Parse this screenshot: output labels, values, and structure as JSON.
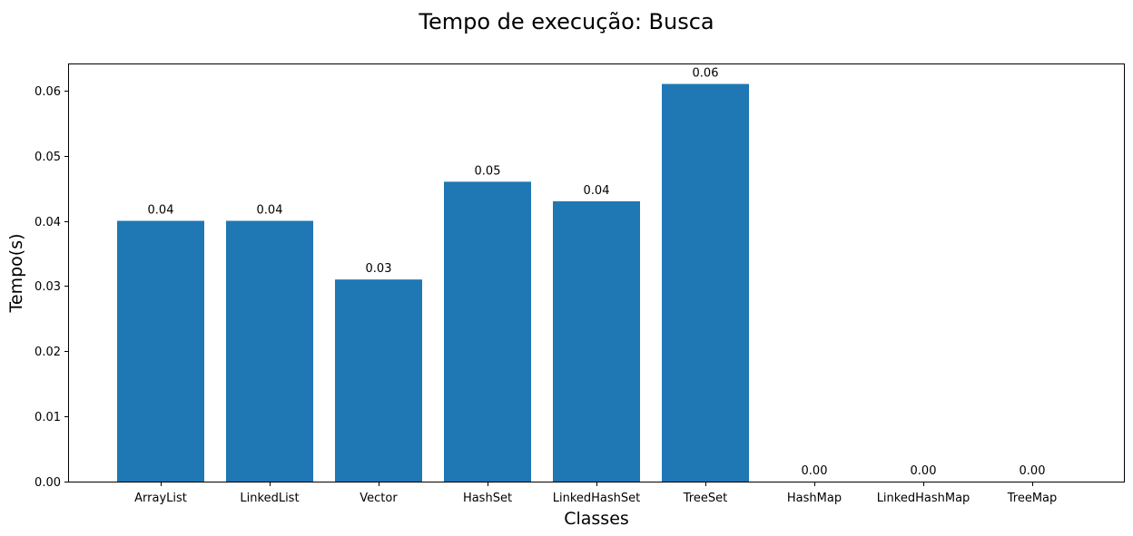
{
  "chart_data": {
    "type": "bar",
    "title": "Tempo de execução: Busca",
    "xlabel": "Classes",
    "ylabel": "Tempo(s)",
    "categories": [
      "ArrayList",
      "LinkedList",
      "Vector",
      "HashSet",
      "LinkedHashSet",
      "TreeSet",
      "HashMap",
      "LinkedHashMap",
      "TreeMap"
    ],
    "values": [
      0.04,
      0.04,
      0.031,
      0.046,
      0.043,
      0.061,
      0.0,
      0.0,
      0.0
    ],
    "data_labels": [
      "0.04",
      "0.04",
      "0.03",
      "0.05",
      "0.04",
      "0.06",
      "0.00",
      "0.00",
      "0.00"
    ],
    "yticks": [
      0.0,
      0.01,
      0.02,
      0.03,
      0.04,
      0.05,
      0.06
    ],
    "ytick_labels": [
      "0.00",
      "0.01",
      "0.02",
      "0.03",
      "0.04",
      "0.05",
      "0.06"
    ],
    "ylim": [
      0,
      0.064
    ],
    "grid": false,
    "legend": "none",
    "bar_color": "#1f77b4"
  }
}
